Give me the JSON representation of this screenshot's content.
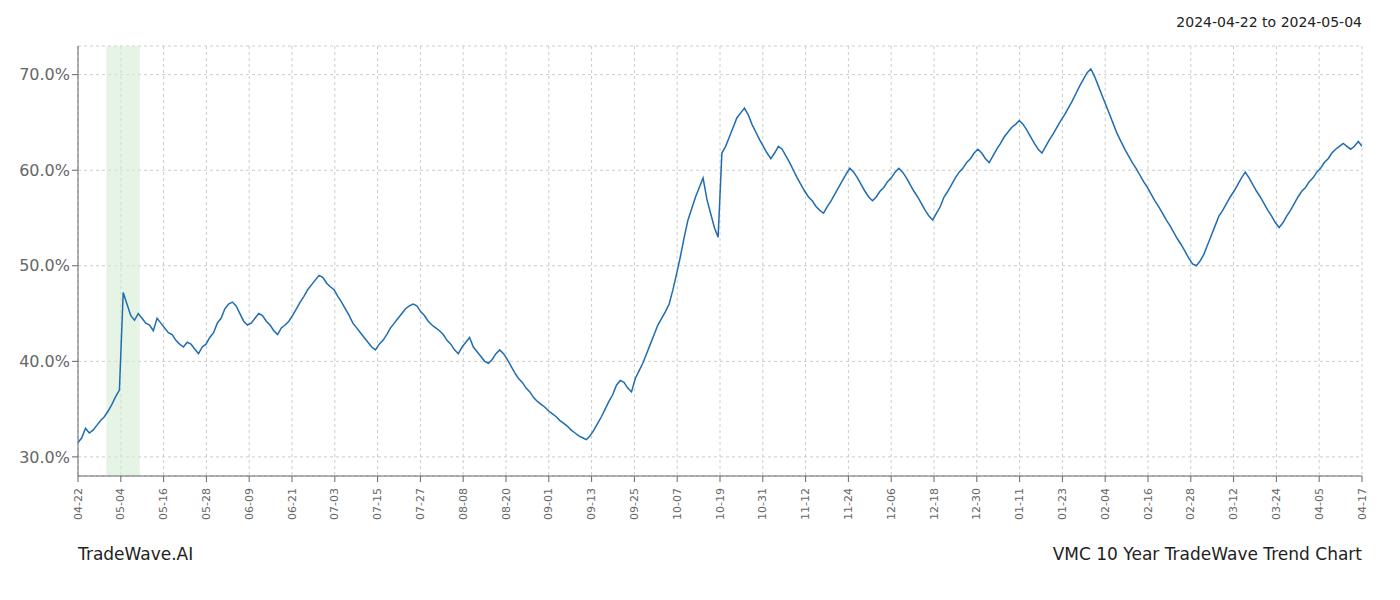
{
  "chart_data": {
    "type": "line",
    "title": "VMC 10 Year TradeWave Trend Chart",
    "subtitle": "2024-04-22 to 2024-05-04",
    "annotations": [
      "TradeWave.AI"
    ],
    "grid": true,
    "xlim": [
      0,
      341
    ],
    "xticks": [
      {
        "value": 0,
        "label": "04-22"
      },
      {
        "value": 11.366666666666667,
        "label": "05-04"
      },
      {
        "value": 22.733333333333334,
        "label": "05-16"
      },
      {
        "value": 34.1,
        "label": "05-28"
      },
      {
        "value": 45.46666666666667,
        "label": "06-09"
      },
      {
        "value": 56.833333333333336,
        "label": "06-21"
      },
      {
        "value": 68.2,
        "label": "07-03"
      },
      {
        "value": 79.56666666666666,
        "label": "07-15"
      },
      {
        "value": 90.93333333333334,
        "label": "07-27"
      },
      {
        "value": 102.3,
        "label": "08-08"
      },
      {
        "value": 113.66666666666667,
        "label": "08-20"
      },
      {
        "value": 125.03333333333333,
        "label": "09-01"
      },
      {
        "value": 136.4,
        "label": "09-13"
      },
      {
        "value": 147.76666666666668,
        "label": "09-25"
      },
      {
        "value": 159.13333333333333,
        "label": "10-07"
      },
      {
        "value": 170.5,
        "label": "10-19"
      },
      {
        "value": 181.86666666666667,
        "label": "10-31"
      },
      {
        "value": 193.23333333333332,
        "label": "11-12"
      },
      {
        "value": 204.6,
        "label": "11-24"
      },
      {
        "value": 215.96666666666667,
        "label": "12-06"
      },
      {
        "value": 227.33333333333334,
        "label": "12-18"
      },
      {
        "value": 238.7,
        "label": "12-30"
      },
      {
        "value": 250.06666666666666,
        "label": "01-11"
      },
      {
        "value": 261.43333333333334,
        "label": "01-23"
      },
      {
        "value": 272.8,
        "label": "02-04"
      },
      {
        "value": 284.1666666666667,
        "label": "02-16"
      },
      {
        "value": 295.53333333333336,
        "label": "02-28"
      },
      {
        "value": 306.9,
        "label": "03-12"
      },
      {
        "value": 318.26666666666665,
        "label": "03-24"
      },
      {
        "value": 329.6333333333333,
        "label": "04-05"
      },
      {
        "value": 341,
        "label": "04-17"
      }
    ],
    "ylim": [
      0.28,
      0.73
    ],
    "yticks": [
      {
        "value": 0.3,
        "label": "30.0%"
      },
      {
        "value": 0.4,
        "label": "40.0%"
      },
      {
        "value": 0.5,
        "label": "50.0%"
      },
      {
        "value": 0.6,
        "label": "60.0%"
      },
      {
        "value": 0.7,
        "label": "70.0%"
      }
    ],
    "highlight": {
      "range": [
        7.524,
        16.416
      ],
      "color": "#d6edd6"
    },
    "color": "#1f6cb0",
    "x": [
      0,
      1,
      2,
      3,
      4,
      5,
      6,
      7,
      8,
      9,
      10,
      11,
      12,
      13,
      14,
      15,
      16,
      17,
      18,
      19,
      20,
      21,
      22,
      23,
      24,
      25,
      26,
      27,
      28,
      29,
      30,
      31,
      32,
      33,
      34,
      35,
      36,
      37,
      38,
      39,
      40,
      41,
      42,
      43,
      44,
      45,
      46,
      47,
      48,
      49,
      50,
      51,
      52,
      53,
      54,
      55,
      56,
      57,
      58,
      59,
      60,
      61,
      62,
      63,
      64,
      65,
      66,
      67,
      68,
      69,
      70,
      71,
      72,
      73,
      74,
      75,
      76,
      77,
      78,
      79,
      80,
      81,
      82,
      83,
      84,
      85,
      86,
      87,
      88,
      89,
      90,
      91,
      92,
      93,
      94,
      95,
      96,
      97,
      98,
      99,
      100,
      101,
      102,
      103,
      104,
      105,
      106,
      107,
      108,
      109,
      110,
      111,
      112,
      113,
      114,
      115,
      116,
      117,
      118,
      119,
      120,
      121,
      122,
      123,
      124,
      125,
      126,
      127,
      128,
      129,
      130,
      131,
      132,
      133,
      134,
      135,
      136,
      137,
      138,
      139,
      140,
      141,
      142,
      143,
      144,
      145,
      146,
      147,
      148,
      149,
      150,
      151,
      152,
      153,
      154,
      155,
      156,
      157,
      158,
      159,
      160,
      161,
      162,
      163,
      164,
      165,
      166,
      167,
      168,
      169,
      170,
      171,
      172,
      173,
      174,
      175,
      176,
      177,
      178,
      179,
      180,
      181,
      182,
      183,
      184,
      185,
      186,
      187,
      188,
      189,
      190,
      191,
      192,
      193,
      194,
      195,
      196,
      197,
      198,
      199,
      200,
      201,
      202,
      203,
      204,
      205,
      206,
      207,
      208,
      209,
      210,
      211,
      212,
      213,
      214,
      215,
      216,
      217,
      218,
      219,
      220,
      221,
      222,
      223,
      224,
      225,
      226,
      227,
      228,
      229,
      230,
      231,
      232,
      233,
      234,
      235,
      236,
      237,
      238,
      239,
      240,
      241,
      242,
      243,
      244,
      245,
      246,
      247,
      248,
      249,
      250,
      251,
      252,
      253,
      254,
      255,
      256,
      257,
      258,
      259,
      260,
      261,
      262,
      263,
      264,
      265,
      266,
      267,
      268,
      269,
      270,
      271,
      272,
      273,
      274,
      275,
      276,
      277,
      278,
      279,
      280,
      281,
      282,
      283,
      284,
      285,
      286,
      287,
      288,
      289,
      290,
      291,
      292,
      293,
      294,
      295,
      296,
      297,
      298,
      299,
      300,
      301,
      302,
      303,
      304,
      305,
      306,
      307,
      308,
      309,
      310,
      311,
      312,
      313,
      314,
      315,
      316,
      317,
      318,
      319,
      320,
      321,
      322,
      323,
      324,
      325,
      326,
      327,
      328,
      329,
      330,
      331,
      332,
      333,
      334,
      335,
      336,
      337,
      338,
      339,
      340,
      341
    ],
    "values": [
      0.315,
      0.32,
      0.33,
      0.325,
      0.328,
      0.333,
      0.338,
      0.342,
      0.348,
      0.355,
      0.363,
      0.37,
      0.472,
      0.46,
      0.448,
      0.443,
      0.45,
      0.445,
      0.44,
      0.438,
      0.432,
      0.445,
      0.44,
      0.435,
      0.43,
      0.428,
      0.422,
      0.418,
      0.415,
      0.42,
      0.418,
      0.413,
      0.408,
      0.415,
      0.418,
      0.425,
      0.43,
      0.44,
      0.445,
      0.455,
      0.46,
      0.462,
      0.458,
      0.45,
      0.442,
      0.438,
      0.44,
      0.445,
      0.45,
      0.448,
      0.442,
      0.438,
      0.432,
      0.428,
      0.435,
      0.438,
      0.442,
      0.448,
      0.455,
      0.462,
      0.468,
      0.475,
      0.48,
      0.485,
      0.49,
      0.488,
      0.482,
      0.478,
      0.475,
      0.468,
      0.462,
      0.455,
      0.448,
      0.44,
      0.435,
      0.43,
      0.425,
      0.42,
      0.415,
      0.412,
      0.418,
      0.422,
      0.428,
      0.435,
      0.44,
      0.445,
      0.45,
      0.455,
      0.458,
      0.46,
      0.458,
      0.452,
      0.448,
      0.442,
      0.438,
      0.435,
      0.432,
      0.428,
      0.422,
      0.418,
      0.412,
      0.408,
      0.415,
      0.42,
      0.425,
      0.415,
      0.41,
      0.405,
      0.4,
      0.398,
      0.402,
      0.408,
      0.412,
      0.408,
      0.402,
      0.395,
      0.388,
      0.382,
      0.378,
      0.372,
      0.368,
      0.362,
      0.358,
      0.355,
      0.352,
      0.348,
      0.345,
      0.342,
      0.338,
      0.335,
      0.332,
      0.328,
      0.325,
      0.322,
      0.32,
      0.318,
      0.322,
      0.328,
      0.335,
      0.342,
      0.35,
      0.358,
      0.365,
      0.375,
      0.38,
      0.378,
      0.372,
      0.368,
      0.382,
      0.39,
      0.398,
      0.408,
      0.418,
      0.428,
      0.438,
      0.445,
      0.452,
      0.46,
      0.475,
      0.492,
      0.51,
      0.53,
      0.548,
      0.56,
      0.572,
      0.582,
      0.592,
      0.57,
      0.555,
      0.54,
      0.53,
      0.618,
      0.625,
      0.635,
      0.645,
      0.655,
      0.66,
      0.665,
      0.658,
      0.648,
      0.64,
      0.632,
      0.625,
      0.618,
      0.612,
      0.618,
      0.625,
      0.622,
      0.615,
      0.608,
      0.6,
      0.592,
      0.585,
      0.578,
      0.572,
      0.568,
      0.562,
      0.558,
      0.555,
      0.562,
      0.568,
      0.575,
      0.582,
      0.589,
      0.596,
      0.602,
      0.598,
      0.592,
      0.585,
      0.578,
      0.572,
      0.568,
      0.572,
      0.578,
      0.582,
      0.588,
      0.592,
      0.598,
      0.602,
      0.598,
      0.592,
      0.585,
      0.578,
      0.572,
      0.565,
      0.558,
      0.552,
      0.548,
      0.555,
      0.562,
      0.572,
      0.578,
      0.585,
      0.592,
      0.598,
      0.602,
      0.608,
      0.612,
      0.618,
      0.622,
      0.618,
      0.612,
      0.608,
      0.615,
      0.622,
      0.628,
      0.635,
      0.64,
      0.645,
      0.648,
      0.652,
      0.648,
      0.642,
      0.635,
      0.628,
      0.622,
      0.618,
      0.625,
      0.632,
      0.638,
      0.645,
      0.652,
      0.658,
      0.665,
      0.672,
      0.68,
      0.688,
      0.695,
      0.702,
      0.706,
      0.698,
      0.688,
      0.678,
      0.668,
      0.658,
      0.648,
      0.638,
      0.63,
      0.622,
      0.615,
      0.608,
      0.602,
      0.595,
      0.588,
      0.582,
      0.575,
      0.568,
      0.562,
      0.555,
      0.548,
      0.542,
      0.535,
      0.528,
      0.522,
      0.515,
      0.508,
      0.502,
      0.5,
      0.505,
      0.512,
      0.522,
      0.532,
      0.542,
      0.552,
      0.558,
      0.565,
      0.572,
      0.578,
      0.585,
      0.592,
      0.598,
      0.592,
      0.585,
      0.578,
      0.572,
      0.565,
      0.558,
      0.552,
      0.545,
      0.54,
      0.545,
      0.552,
      0.558,
      0.565,
      0.572,
      0.578,
      0.582,
      0.588,
      0.592,
      0.598,
      0.602,
      0.608,
      0.612,
      0.618,
      0.622,
      0.625,
      0.628,
      0.625,
      0.622,
      0.625,
      0.63,
      0.625
    ]
  }
}
